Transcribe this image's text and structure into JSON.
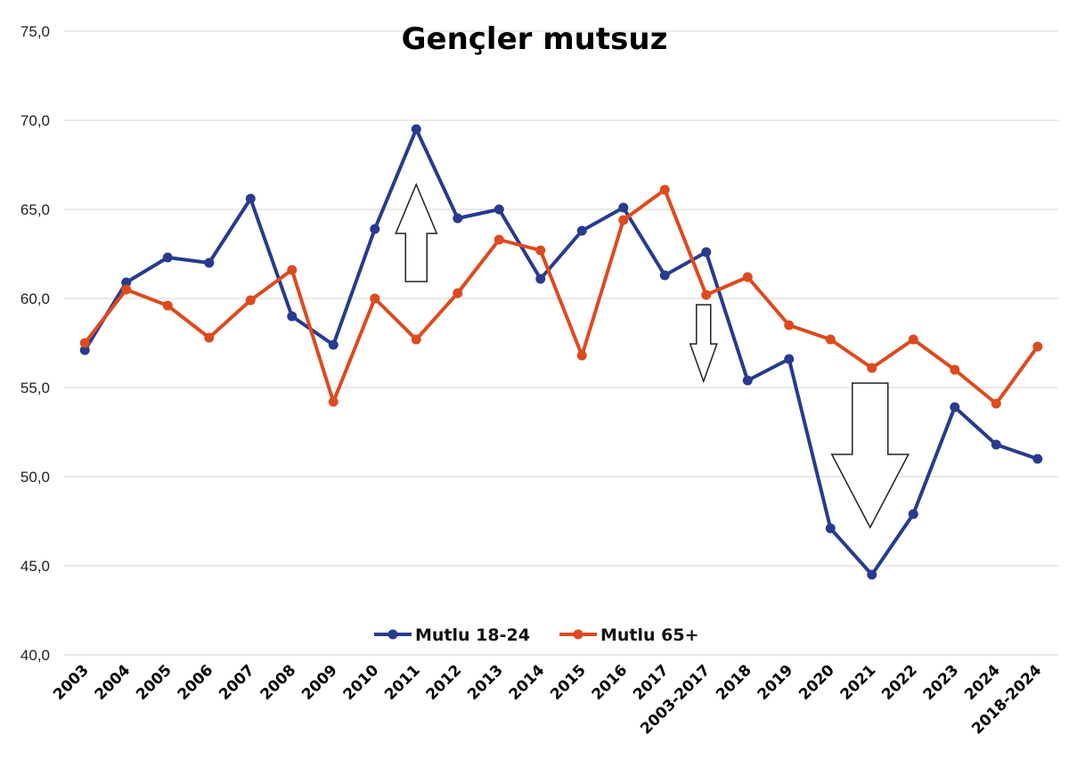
{
  "chart_data": {
    "type": "line",
    "title": "Gençler mutsuz",
    "xlabel": "",
    "ylabel": "",
    "ylim": [
      40,
      75
    ],
    "yticks": [
      "40,0",
      "45,0",
      "50,0",
      "55,0",
      "60,0",
      "65,0",
      "70,0",
      "75,0"
    ],
    "grid": true,
    "legend_position": "bottom",
    "categories": [
      "2003",
      "2004",
      "2005",
      "2006",
      "2007",
      "2008",
      "2009",
      "2010",
      "2011",
      "2012",
      "2013",
      "2014",
      "2015",
      "2016",
      "2017",
      "2003-2017",
      "2018",
      "2019",
      "2020",
      "2021",
      "2022",
      "2023",
      "2024",
      "2018-2024"
    ],
    "series": [
      {
        "name": "Mutlu 18-24",
        "color": "#283b8f",
        "values": [
          57.1,
          60.9,
          62.3,
          62.0,
          65.6,
          59.0,
          57.4,
          63.9,
          69.5,
          64.5,
          65.0,
          61.1,
          63.8,
          65.1,
          61.3,
          62.6,
          55.4,
          56.6,
          47.1,
          44.5,
          47.9,
          53.9,
          51.8,
          51.0
        ]
      },
      {
        "name": "Mutlu 65+",
        "color": "#de4a1f",
        "values": [
          57.5,
          60.5,
          59.6,
          57.8,
          59.9,
          61.6,
          54.2,
          60.0,
          57.7,
          60.3,
          63.3,
          62.7,
          56.8,
          64.4,
          66.1,
          60.2,
          61.2,
          58.5,
          57.7,
          56.1,
          57.7,
          56.0,
          54.1,
          57.3
        ]
      }
    ],
    "annotations": [
      {
        "shape": "arrow-up",
        "category": "2011"
      },
      {
        "shape": "arrow-down",
        "category": "2003-2017"
      },
      {
        "shape": "arrow-down",
        "category": "2021"
      }
    ]
  }
}
